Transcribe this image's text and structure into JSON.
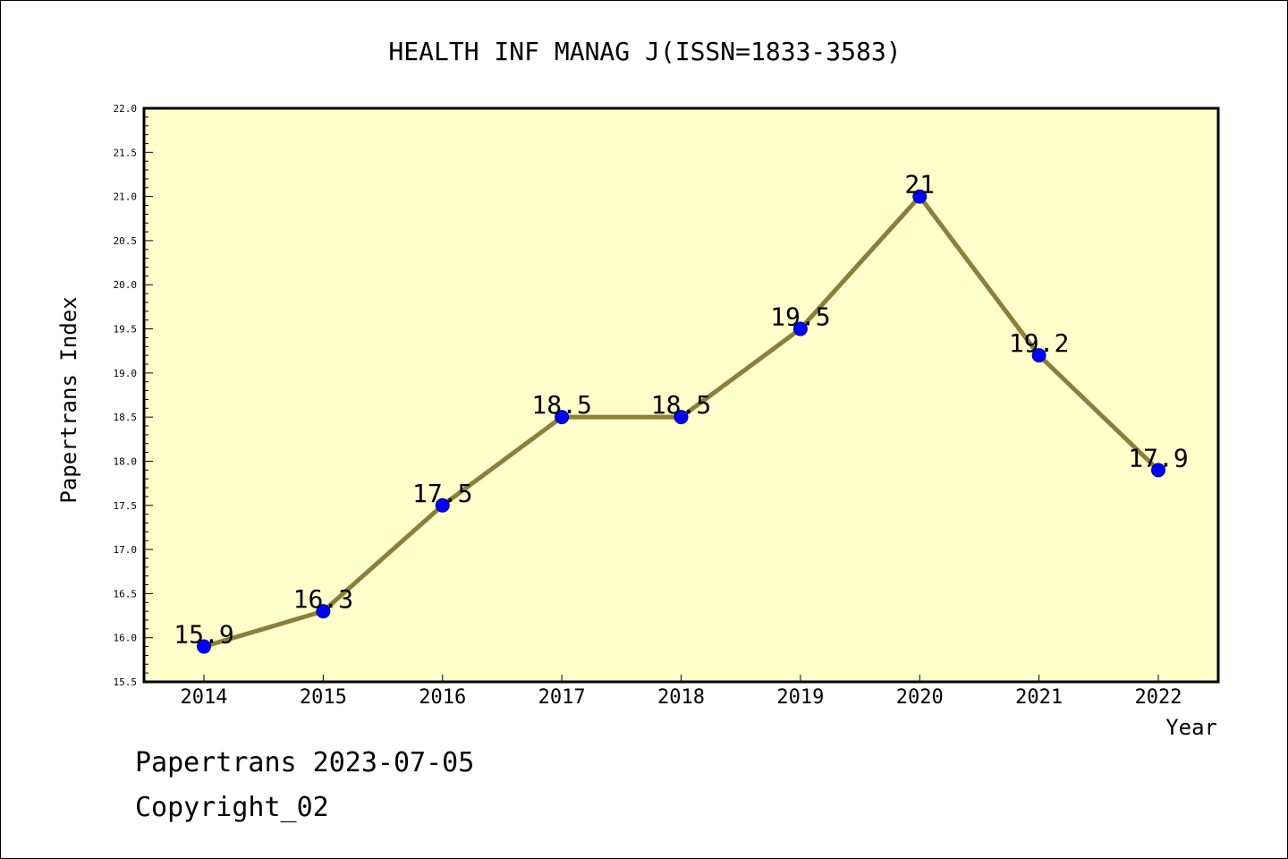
{
  "chart_data": {
    "type": "line",
    "title": "HEALTH INF MANAG J(ISSN=1833-3583)",
    "xlabel": "Year",
    "ylabel": "Papertrans Index",
    "categories": [
      "2014",
      "2015",
      "2016",
      "2017",
      "2018",
      "2019",
      "2020",
      "2021",
      "2022"
    ],
    "series": [
      {
        "values": [
          15.9,
          16.3,
          17.5,
          18.5,
          18.5,
          19.5,
          21,
          19.2,
          17.9
        ],
        "data_labels": [
          "15.9",
          "16.3",
          "17.5",
          "18.5",
          "18.5",
          "19.5",
          "21",
          "19.2",
          "17.9"
        ]
      }
    ],
    "ylim": [
      15.5,
      22.0
    ],
    "yticks": [
      "15.5",
      "16.0",
      "16.5",
      "17.0",
      "17.5",
      "18.0",
      "18.5",
      "19.0",
      "19.5",
      "20.0",
      "20.5",
      "21.0",
      "21.5",
      "22.0"
    ],
    "grid": false,
    "colors": {
      "plot_background": "#ffffcc",
      "line": "#8b7f3a",
      "marker": "#0000ff",
      "axis": "#000000"
    }
  },
  "footer": {
    "line1": "Papertrans 2023-07-05",
    "line2": "Copyright_02"
  }
}
